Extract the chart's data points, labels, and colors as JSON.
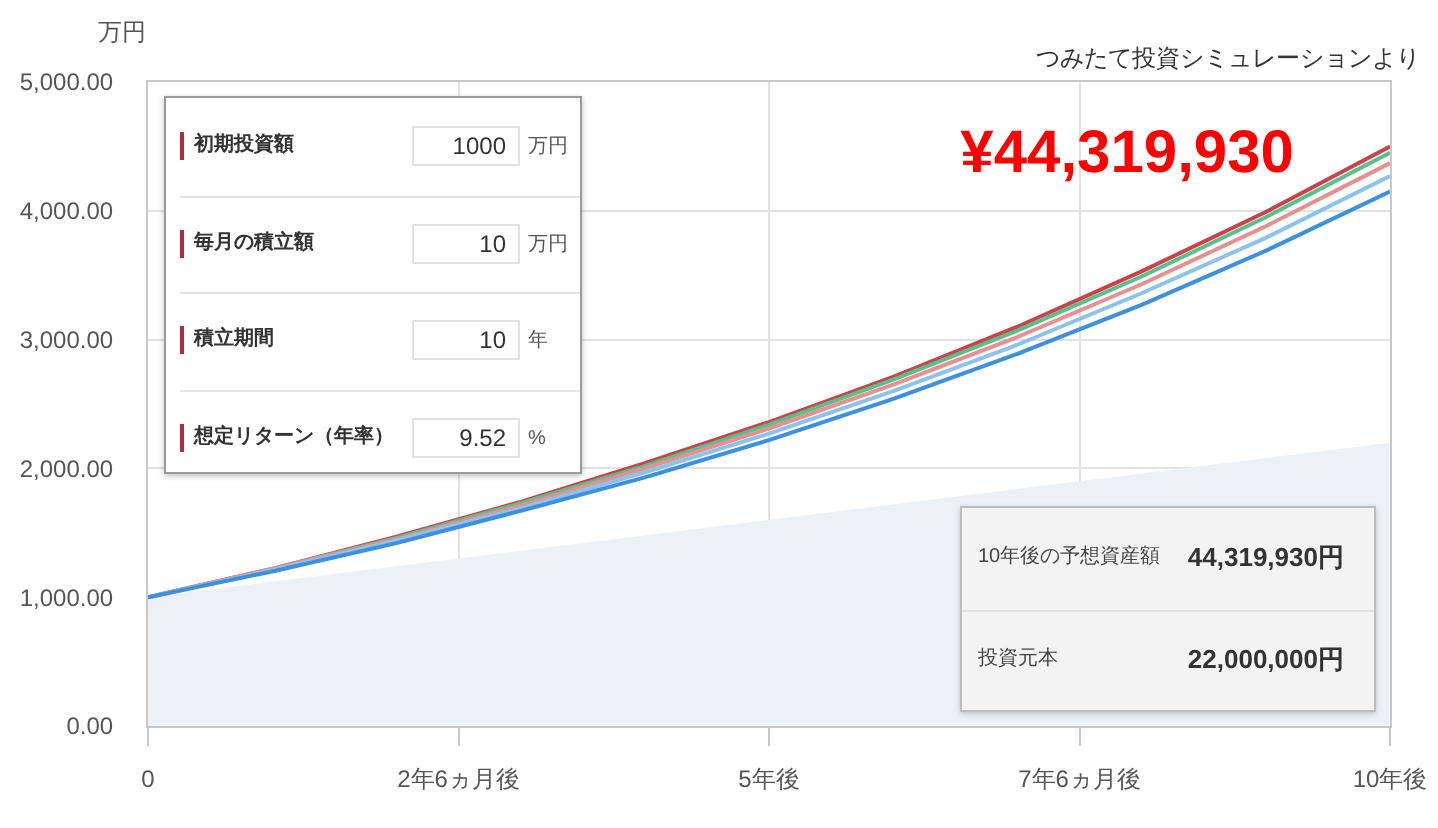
{
  "chart_data": {
    "type": "line",
    "ylabel": "万円",
    "x": [
      0,
      1,
      2,
      3,
      4,
      5,
      6,
      7,
      8,
      9,
      10
    ],
    "xlim": [
      0,
      10
    ],
    "xticks": [
      0,
      {
        "value": 2.5,
        "label": "2年6ヵ月後"
      },
      {
        "value": 5,
        "label": "5年後"
      },
      {
        "value": 7.5,
        "label": "7年6ヵ月後"
      },
      {
        "value": 10,
        "label": "10年後"
      }
    ],
    "ylim": [
      0,
      5000
    ],
    "yticks": [
      {
        "value": 0,
        "label": "0.00"
      },
      {
        "value": 1000,
        "label": "1,000.00"
      },
      {
        "value": 2000,
        "label": "2,000.00"
      },
      {
        "value": 3000,
        "label": "3,000.00"
      },
      {
        "value": 4000,
        "label": "4,000.00"
      },
      {
        "value": 5000,
        "label": "5,000.00"
      }
    ],
    "series": [
      {
        "type": "area",
        "color": "#edf0f5",
        "values": [
          1000,
          1120,
          1240,
          1360,
          1480,
          1600,
          1720,
          1840,
          1960,
          2080,
          2200
        ]
      },
      {
        "color": "#c9434b",
        "values": [
          1000,
          1220,
          1470,
          1740,
          2040,
          2360,
          2710,
          3100,
          3530,
          3990,
          4500
        ]
      },
      {
        "color": "#5bbf8b",
        "values": [
          1000,
          1220,
          1460,
          1730,
          2020,
          2340,
          2690,
          3070,
          3490,
          3950,
          4450
        ]
      },
      {
        "color": "#e88f8f",
        "values": [
          1000,
          1220,
          1450,
          1710,
          2000,
          2310,
          2650,
          3020,
          3430,
          3880,
          4370
        ]
      },
      {
        "color": "#8cc3ee",
        "values": [
          1000,
          1210,
          1440,
          1690,
          1970,
          2270,
          2600,
          2960,
          3360,
          3790,
          4270
        ]
      },
      {
        "color": "#3d8fe0",
        "values": [
          1000,
          1200,
          1420,
          1670,
          1930,
          2220,
          2540,
          2890,
          3270,
          3690,
          4150
        ]
      }
    ],
    "grid": true,
    "line_style": "solid",
    "annotations": [
      "初期投資額",
      "1000",
      "万円",
      "毎月の積立額",
      "10",
      "万円",
      "積立期間",
      "10",
      "年",
      "想定リターン（年率）",
      "9.52",
      "%",
      "10年後の予想資産額",
      "44,319,930円",
      "投資元本",
      "22,000,000円",
      "¥44,319,930",
      "つみたて投資シミュレーションより"
    ]
  }
}
